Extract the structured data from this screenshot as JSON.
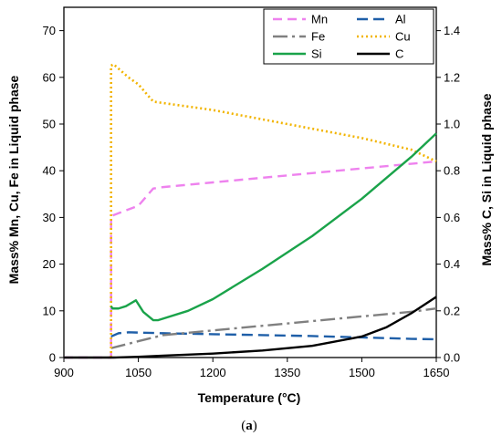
{
  "chart_data": {
    "type": "line",
    "title": "",
    "xlabel": "Temperature (°C)",
    "ylabel_left": "Mass% Mn, Cu, Fe in Liquid phase",
    "ylabel_right": "Mass% C, Si in Liquid phase",
    "xlim": [
      900,
      1650
    ],
    "ylim_left": [
      0,
      75
    ],
    "ylim_right": [
      0,
      1.5
    ],
    "x_ticks": [
      "900",
      "1050",
      "1200",
      "1350",
      "1500",
      "1650"
    ],
    "x_tick_values": [
      900,
      1050,
      1200,
      1350,
      1500,
      1650
    ],
    "y_left_ticks": [
      "0",
      "10",
      "20",
      "30",
      "40",
      "50",
      "60",
      "70"
    ],
    "y_left_tick_values": [
      0,
      10,
      20,
      30,
      40,
      50,
      60,
      70
    ],
    "y_right_ticks": [
      "0.0",
      "0.2",
      "0.4",
      "0.6",
      "0.8",
      "1.0",
      "1.2",
      "1.4"
    ],
    "y_right_tick_values": [
      0,
      0.2,
      0.4,
      0.6,
      0.8,
      1.0,
      1.2,
      1.4
    ],
    "grid": false,
    "legend_position": "top-right",
    "series": [
      {
        "name": "Mn",
        "axis": "left",
        "color": "#ee82ee",
        "dash": "10,6",
        "points": [
          [
            900,
            0
          ],
          [
            995,
            0
          ],
          [
            995,
            30
          ],
          [
            1000,
            30.5
          ],
          [
            1050,
            32.5
          ],
          [
            1080,
            36.2
          ],
          [
            1100,
            36.5
          ],
          [
            1200,
            37.5
          ],
          [
            1300,
            38.5
          ],
          [
            1400,
            39.5
          ],
          [
            1500,
            40.5
          ],
          [
            1600,
            41.5
          ],
          [
            1650,
            42
          ]
        ]
      },
      {
        "name": "Al",
        "axis": "left",
        "color": "#1f5fa8",
        "dash": "12,6",
        "points": [
          [
            995,
            4.5
          ],
          [
            1010,
            5.2
          ],
          [
            1030,
            5.4
          ],
          [
            1100,
            5.2
          ],
          [
            1200,
            5.0
          ],
          [
            1300,
            4.8
          ],
          [
            1400,
            4.6
          ],
          [
            1500,
            4.3
          ],
          [
            1600,
            4.0
          ],
          [
            1650,
            3.9
          ]
        ]
      },
      {
        "name": "Fe",
        "axis": "left",
        "color": "#808080",
        "dash": "16,5,3,5",
        "points": [
          [
            995,
            2
          ],
          [
            1050,
            3.5
          ],
          [
            1100,
            4.8
          ],
          [
            1200,
            5.8
          ],
          [
            1300,
            6.8
          ],
          [
            1400,
            7.8
          ],
          [
            1500,
            8.8
          ],
          [
            1600,
            9.8
          ],
          [
            1650,
            10.5
          ]
        ]
      },
      {
        "name": "Cu",
        "axis": "left",
        "color": "#f2b400",
        "dash": "2,3",
        "points": [
          [
            995,
            0
          ],
          [
            995,
            62.5
          ],
          [
            1000,
            62.8
          ],
          [
            1030,
            60
          ],
          [
            1050,
            58.5
          ],
          [
            1080,
            54.8
          ],
          [
            1100,
            54.5
          ],
          [
            1200,
            53
          ],
          [
            1300,
            51
          ],
          [
            1400,
            49
          ],
          [
            1500,
            47
          ],
          [
            1600,
            44.5
          ],
          [
            1650,
            42
          ]
        ]
      },
      {
        "name": "Si",
        "axis": "right",
        "color": "#1aa34a",
        "dash": "",
        "points": [
          [
            995,
            0.22
          ],
          [
            998,
            0.21
          ],
          [
            1010,
            0.21
          ],
          [
            1025,
            0.22
          ],
          [
            1045,
            0.245
          ],
          [
            1060,
            0.195
          ],
          [
            1080,
            0.16
          ],
          [
            1090,
            0.16
          ],
          [
            1150,
            0.2
          ],
          [
            1200,
            0.25
          ],
          [
            1300,
            0.38
          ],
          [
            1400,
            0.52
          ],
          [
            1500,
            0.68
          ],
          [
            1600,
            0.86
          ],
          [
            1650,
            0.96
          ]
        ]
      },
      {
        "name": "C",
        "axis": "right",
        "color": "#000000",
        "dash": "",
        "points": [
          [
            900,
            0
          ],
          [
            1000,
            0
          ],
          [
            1050,
            0.003
          ],
          [
            1100,
            0.008
          ],
          [
            1200,
            0.017
          ],
          [
            1300,
            0.03
          ],
          [
            1400,
            0.05
          ],
          [
            1500,
            0.09
          ],
          [
            1550,
            0.13
          ],
          [
            1600,
            0.19
          ],
          [
            1650,
            0.26
          ]
        ]
      }
    ]
  },
  "caption": {
    "open": "(",
    "letter": "a",
    "close": ")"
  }
}
